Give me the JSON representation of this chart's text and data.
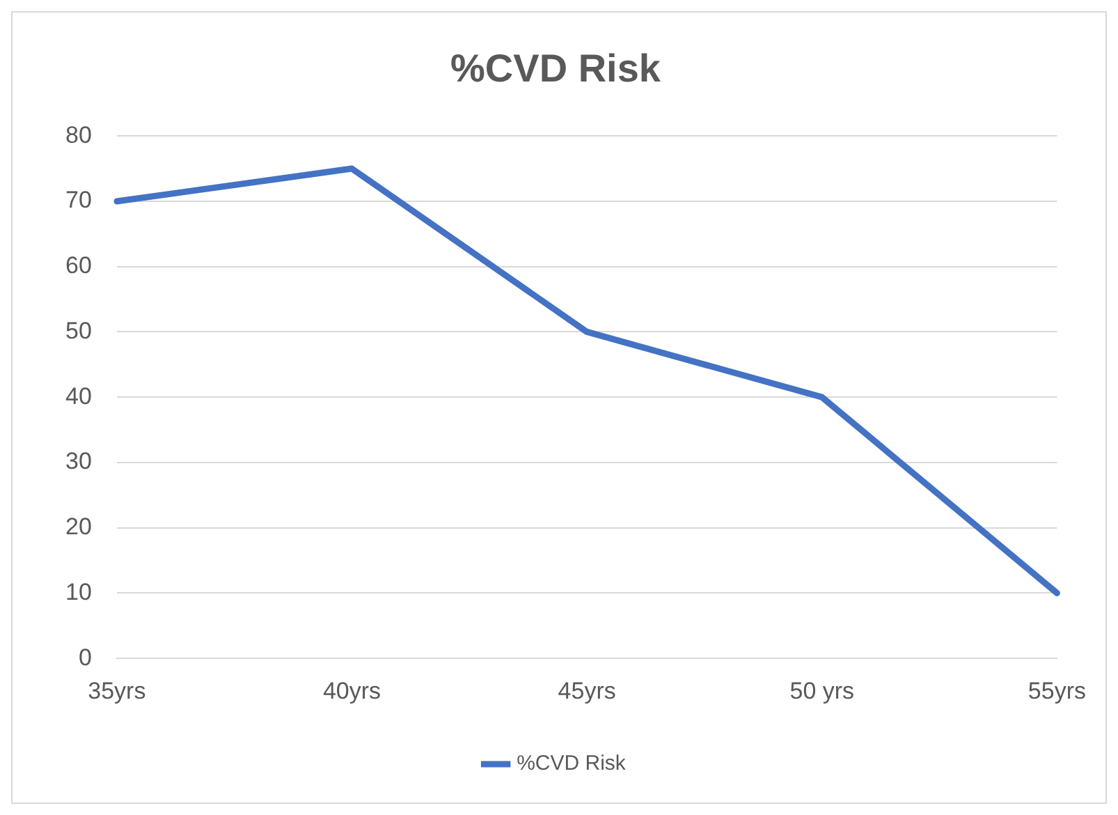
{
  "chart_data": {
    "type": "line",
    "title": "%CVD Risk",
    "categories": [
      "35yrs",
      "40yrs",
      "45yrs",
      "50 yrs",
      "55yrs"
    ],
    "series": [
      {
        "name": "%CVD Risk",
        "color": "#4472c4",
        "values": [
          70,
          75,
          50,
          40,
          10
        ]
      }
    ],
    "ylim": [
      0,
      80
    ],
    "yticks": [
      0,
      10,
      20,
      30,
      40,
      50,
      60,
      70,
      80
    ],
    "grid": "y",
    "legend": "bottom",
    "marker": "none",
    "line_style": "solid"
  }
}
